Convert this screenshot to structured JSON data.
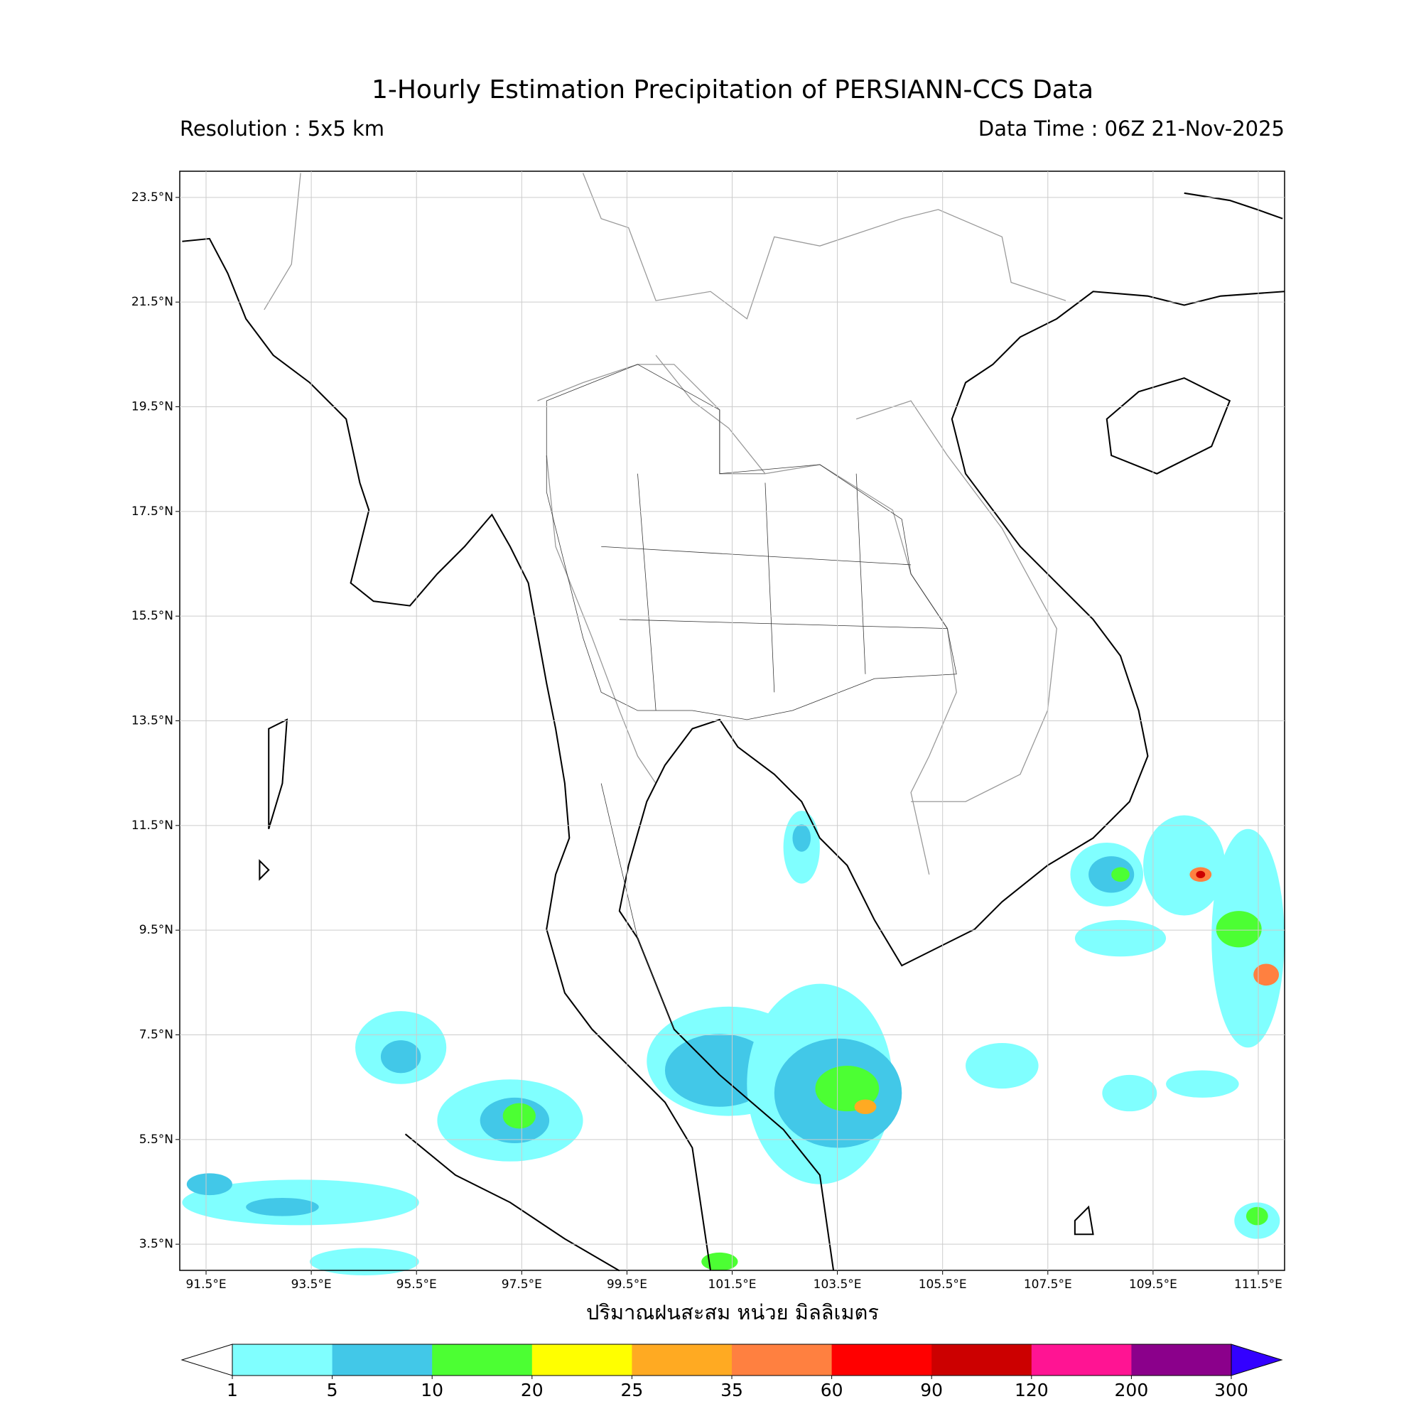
{
  "chart_data": {
    "type": "map",
    "title": "1-Hourly Estimation Precipitation of PERSIANN-CCS Data",
    "resolution": "Resolution : 5x5 km",
    "data_time": "Data Time : 06Z 21-Nov-2025",
    "xlabel": "ปริมาณฝนสะสม หน่วย มิลลิเมตร",
    "xlim": [
      91,
      112
    ],
    "ylim": [
      3,
      24
    ],
    "grid": true,
    "xticks": [
      {
        "value": 91.5,
        "label": "91.5°E"
      },
      {
        "value": 93.5,
        "label": "93.5°E"
      },
      {
        "value": 95.5,
        "label": "95.5°E"
      },
      {
        "value": 97.5,
        "label": "97.5°E"
      },
      {
        "value": 99.5,
        "label": "99.5°E"
      },
      {
        "value": 101.5,
        "label": "101.5°E"
      },
      {
        "value": 103.5,
        "label": "103.5°E"
      },
      {
        "value": 105.5,
        "label": "105.5°E"
      },
      {
        "value": 107.5,
        "label": "107.5°E"
      },
      {
        "value": 109.5,
        "label": "109.5°E"
      },
      {
        "value": 111.5,
        "label": "111.5°E"
      }
    ],
    "yticks": [
      {
        "value": 23.5,
        "label": "23.5°N"
      },
      {
        "value": 21.5,
        "label": "21.5°N"
      },
      {
        "value": 19.5,
        "label": "19.5°N"
      },
      {
        "value": 17.5,
        "label": "17.5°N"
      },
      {
        "value": 15.5,
        "label": "15.5°N"
      },
      {
        "value": 13.5,
        "label": "13.5°N"
      },
      {
        "value": 11.5,
        "label": "11.5°N"
      },
      {
        "value": 9.5,
        "label": "9.5°N"
      },
      {
        "value": 7.5,
        "label": "7.5°N"
      },
      {
        "value": 5.5,
        "label": "5.5°N"
      },
      {
        "value": 3.5,
        "label": "3.5°N"
      }
    ],
    "colorbar": {
      "ticks": [
        1,
        5,
        10,
        20,
        25,
        35,
        60,
        90,
        120,
        200,
        300
      ],
      "colors": [
        "#80ffff",
        "#42c8e8",
        "#4cff33",
        "#ffff00",
        "#ffaa22",
        "#ff8040",
        "#ff0000",
        "#cc0000",
        "#ff1493",
        "#8b008b"
      ],
      "under_color": "#ffffff",
      "over_color": "#3300ff"
    }
  }
}
